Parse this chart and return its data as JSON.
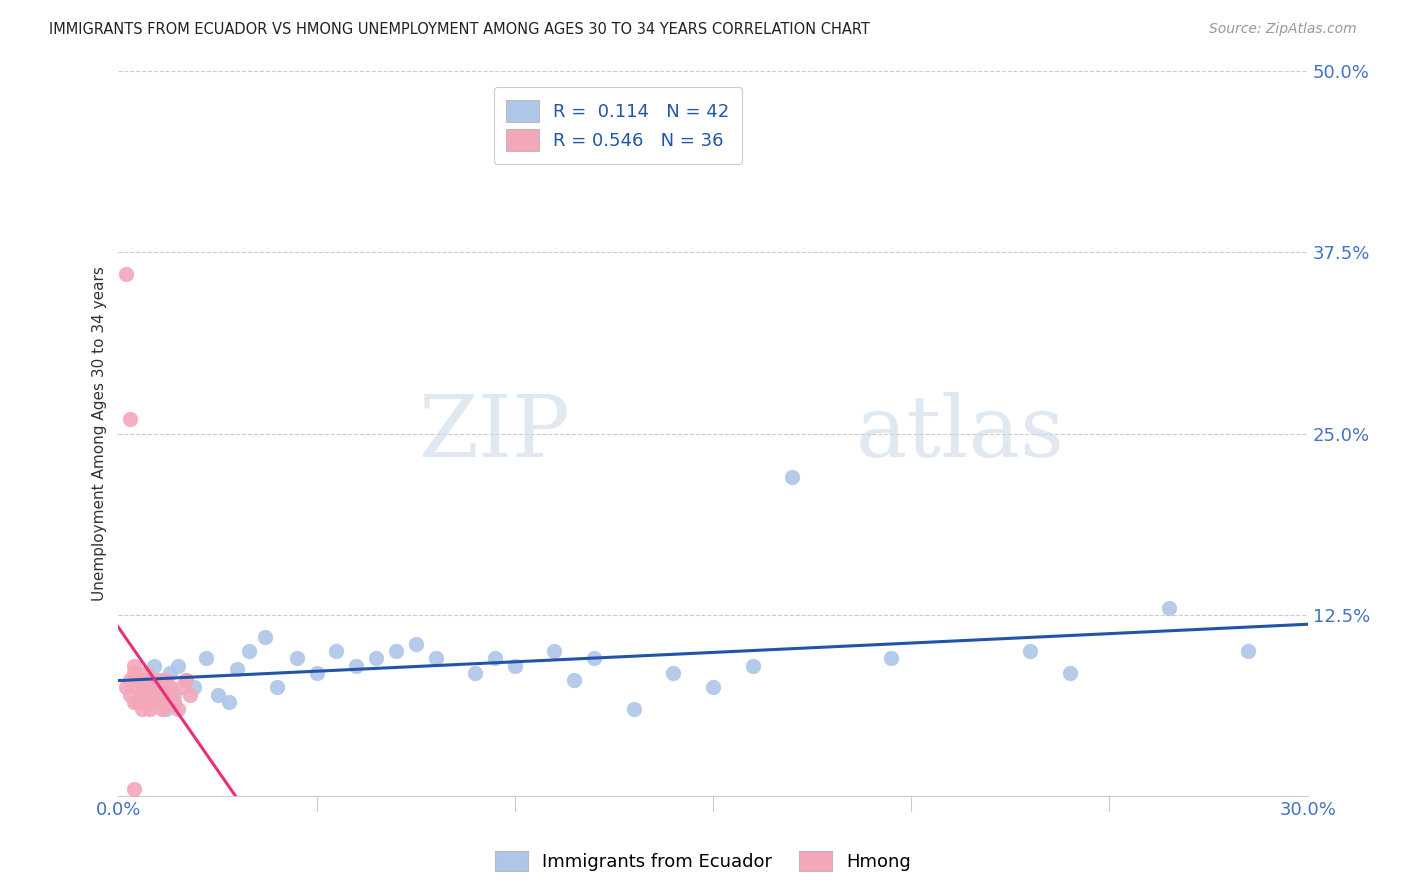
{
  "title": "IMMIGRANTS FROM ECUADOR VS HMONG UNEMPLOYMENT AMONG AGES 30 TO 34 YEARS CORRELATION CHART",
  "source": "Source: ZipAtlas.com",
  "tick_color": "#4472C4",
  "ylabel": "Unemployment Among Ages 30 to 34 years",
  "xlim": [
    0.0,
    0.3
  ],
  "ylim": [
    0.0,
    0.5
  ],
  "xticks": [
    0.0,
    0.05,
    0.1,
    0.15,
    0.2,
    0.25,
    0.3
  ],
  "xticklabels": [
    "0.0%",
    "",
    "",
    "",
    "",
    "",
    "30.0%"
  ],
  "yticks": [
    0.0,
    0.125,
    0.25,
    0.375,
    0.5
  ],
  "yticklabels": [
    "",
    "12.5%",
    "25.0%",
    "37.5%",
    "50.0%"
  ],
  "ecuador_R": 0.114,
  "ecuador_N": 42,
  "hmong_R": 0.546,
  "hmong_N": 36,
  "ecuador_color": "#AEC6E8",
  "hmong_color": "#F4A7B9",
  "ecuador_line_color": "#2255AA",
  "hmong_line_color": "#E8307A",
  "watermark_zip": "ZIP",
  "watermark_atlas": "atlas",
  "background_color": "#FFFFFF",
  "grid_color": "#CCCCCC",
  "ecuador_x": [
    0.006,
    0.008,
    0.009,
    0.01,
    0.011,
    0.012,
    0.013,
    0.014,
    0.015,
    0.017,
    0.019,
    0.022,
    0.025,
    0.028,
    0.03,
    0.033,
    0.037,
    0.04,
    0.045,
    0.05,
    0.055,
    0.06,
    0.065,
    0.07,
    0.075,
    0.08,
    0.09,
    0.095,
    0.1,
    0.11,
    0.115,
    0.12,
    0.13,
    0.14,
    0.15,
    0.16,
    0.17,
    0.195,
    0.23,
    0.24,
    0.265,
    0.285
  ],
  "ecuador_y": [
    0.07,
    0.065,
    0.09,
    0.075,
    0.08,
    0.06,
    0.085,
    0.07,
    0.09,
    0.08,
    0.075,
    0.095,
    0.07,
    0.065,
    0.088,
    0.1,
    0.11,
    0.075,
    0.095,
    0.085,
    0.1,
    0.09,
    0.095,
    0.1,
    0.105,
    0.095,
    0.085,
    0.095,
    0.09,
    0.1,
    0.08,
    0.095,
    0.06,
    0.085,
    0.075,
    0.09,
    0.22,
    0.095,
    0.1,
    0.085,
    0.13,
    0.1
  ],
  "hmong_x": [
    0.002,
    0.003,
    0.003,
    0.004,
    0.004,
    0.005,
    0.005,
    0.005,
    0.006,
    0.006,
    0.006,
    0.007,
    0.007,
    0.007,
    0.008,
    0.008,
    0.008,
    0.009,
    0.009,
    0.01,
    0.01,
    0.011,
    0.011,
    0.012,
    0.012,
    0.013,
    0.013,
    0.014,
    0.015,
    0.016,
    0.017,
    0.018,
    0.002,
    0.003,
    0.004,
    0.004
  ],
  "hmong_y": [
    0.075,
    0.08,
    0.07,
    0.065,
    0.085,
    0.075,
    0.08,
    0.065,
    0.06,
    0.07,
    0.08,
    0.065,
    0.075,
    0.085,
    0.06,
    0.07,
    0.08,
    0.075,
    0.065,
    0.07,
    0.08,
    0.06,
    0.075,
    0.065,
    0.08,
    0.07,
    0.075,
    0.065,
    0.06,
    0.075,
    0.08,
    0.07,
    0.36,
    0.26,
    0.09,
    0.005
  ]
}
